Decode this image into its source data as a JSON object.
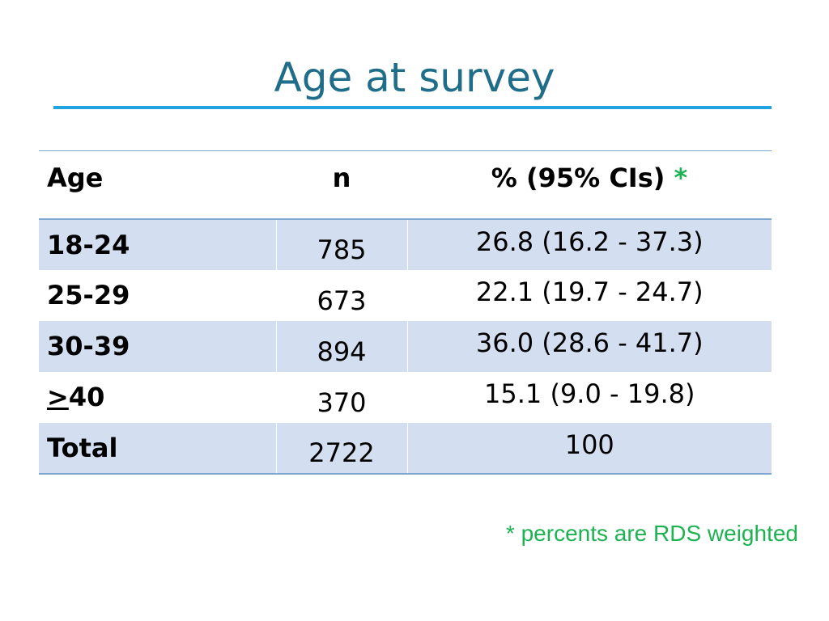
{
  "slide": {
    "title": "Age at survey",
    "footnote": "* percents are RDS weighted"
  },
  "table": {
    "headers": {
      "age": "Age",
      "n": "n",
      "percent": "% (95% CIs)",
      "asterisk": "*"
    },
    "rows": [
      {
        "age": "18-24",
        "n": "785",
        "percent": "26.8 (16.2 - 37.3)"
      },
      {
        "age": "25-29",
        "n": "673",
        "percent": "22.1 (19.7 - 24.7)"
      },
      {
        "age": "30-39",
        "n": "894",
        "percent": "36.0 (28.6 - 41.7)"
      },
      {
        "age_prefix": ">",
        "age_suffix": "40",
        "n": "370",
        "percent": "15.1 (9.0 - 19.8)"
      },
      {
        "age": "Total",
        "n": "2722",
        "percent": "100"
      }
    ]
  },
  "colors": {
    "title": "#1f6d88",
    "title_rule": "#20a4e0",
    "row_shade": "#d3dff0",
    "table_border": "#7ea6cf",
    "accent_green": "#1db352"
  }
}
